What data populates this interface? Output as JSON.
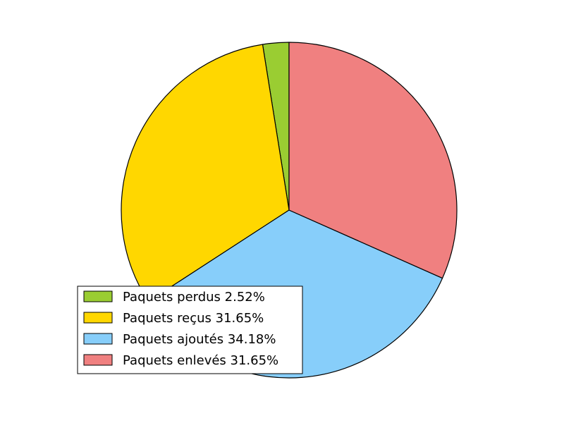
{
  "chart_data": {
    "type": "pie",
    "title": "",
    "start_angle_deg": 90,
    "direction": "counterclockwise",
    "slices": [
      {
        "label": "Paquets perdus 2.52%",
        "value": 2.52,
        "color": "#9ACD32"
      },
      {
        "label": "Paquets reçus 31.65%",
        "value": 31.65,
        "color": "#FFD700"
      },
      {
        "label": "Paquets ajoutés 34.18%",
        "value": 34.18,
        "color": "#87CEFA"
      },
      {
        "label": "Paquets enlevés 31.65%",
        "value": 31.65,
        "color": "#F08080"
      }
    ],
    "legend": {
      "position": "lower-left"
    }
  }
}
